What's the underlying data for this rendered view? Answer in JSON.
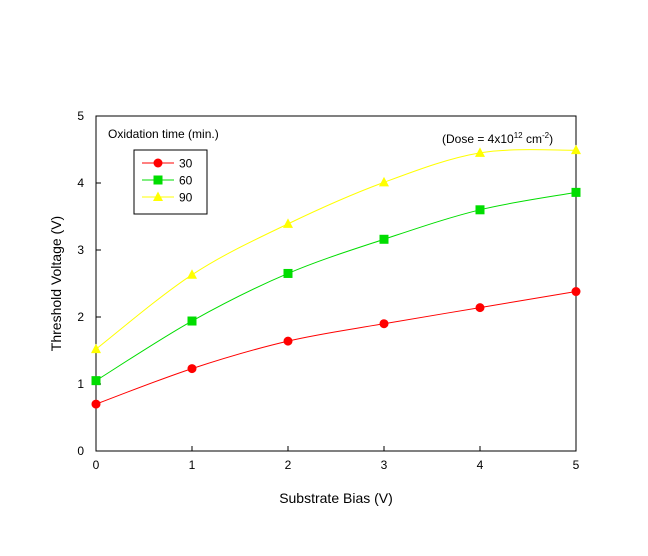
{
  "chart_data": {
    "type": "line",
    "xlabel": "Substrate Bias (V)",
    "ylabel": "Threshold Voltage (V)",
    "xlim": [
      0,
      5
    ],
    "ylim": [
      0,
      5
    ],
    "xticks": [
      0,
      1,
      2,
      3,
      4,
      5
    ],
    "yticks": [
      0,
      1,
      2,
      3,
      4,
      5
    ],
    "grid": false,
    "legend": {
      "placement": "top-left",
      "title": "Oxidation time (min.)"
    },
    "annotation": {
      "prefix": "(Dose = 4x10",
      "exponent": "12",
      "unit": " cm",
      "unit_exponent": "-2",
      "suffix": ")"
    },
    "x": [
      0,
      1,
      2,
      3,
      4,
      5
    ],
    "series": [
      {
        "name": "30",
        "values": [
          0.7,
          1.23,
          1.64,
          1.9,
          2.14,
          2.38
        ],
        "color": "#ff0000",
        "marker": "circle"
      },
      {
        "name": "60",
        "values": [
          1.05,
          1.94,
          2.65,
          3.16,
          3.6,
          3.86
        ],
        "color": "#00dd00",
        "marker": "square"
      },
      {
        "name": "90",
        "values": [
          1.52,
          2.63,
          3.39,
          4.01,
          4.45,
          4.49
        ],
        "color": "#ffff00",
        "marker": "triangle"
      }
    ]
  }
}
